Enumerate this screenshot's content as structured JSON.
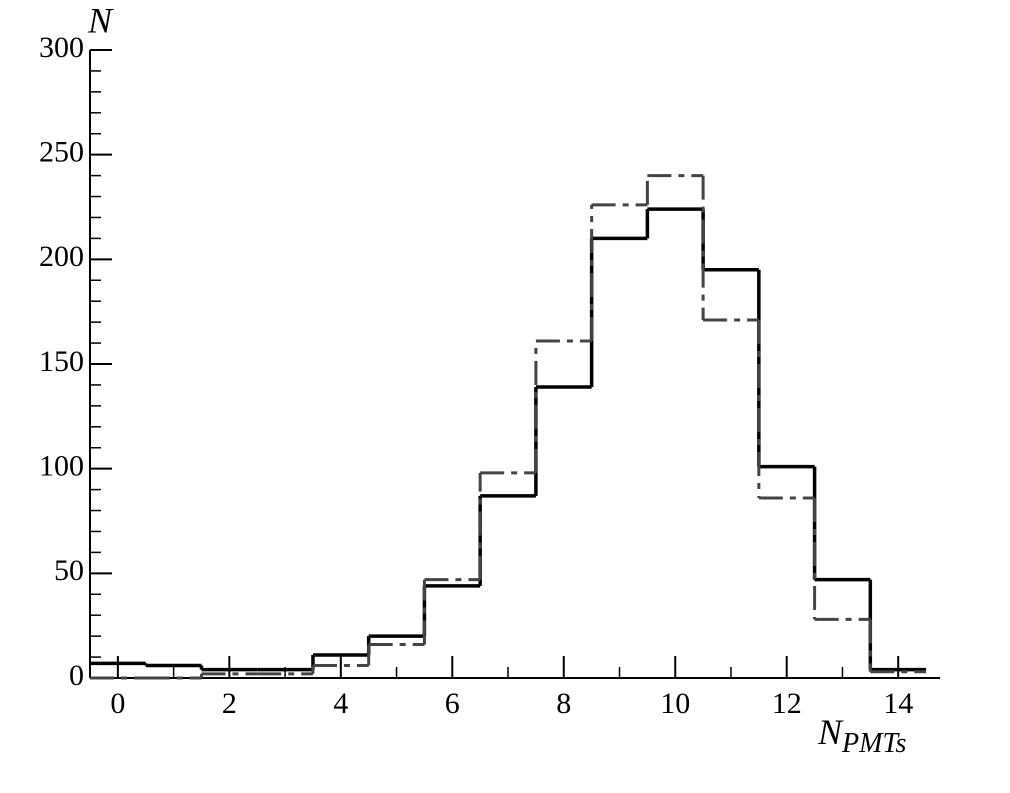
{
  "chart_data": {
    "type": "histogram",
    "y_label": "N",
    "x_label": "N",
    "x_label_subscript": "PMTs",
    "bins": [
      -0.5,
      0.5,
      1.5,
      2.5,
      3.5,
      4.5,
      5.5,
      6.5,
      7.5,
      8.5,
      9.5,
      10.5,
      11.5,
      12.5,
      13.5,
      14.5
    ],
    "series": [
      {
        "color": "#000000",
        "style": "solid",
        "values": [
          7,
          6,
          4,
          4,
          11,
          20,
          44,
          87,
          139,
          210,
          224,
          195,
          101,
          47,
          4
        ]
      },
      {
        "color": "#444444",
        "style": "dashed",
        "values": [
          0,
          0,
          2,
          2,
          6,
          16,
          47,
          98,
          161,
          226,
          240,
          171,
          86,
          28,
          3
        ]
      }
    ],
    "xlim": [
      -0.5,
      14.75
    ],
    "ylim": [
      0,
      300
    ],
    "xticks": [
      0,
      2,
      4,
      6,
      8,
      10,
      12,
      14
    ],
    "yticks": [
      0,
      50,
      100,
      150,
      200,
      250,
      300
    ]
  }
}
